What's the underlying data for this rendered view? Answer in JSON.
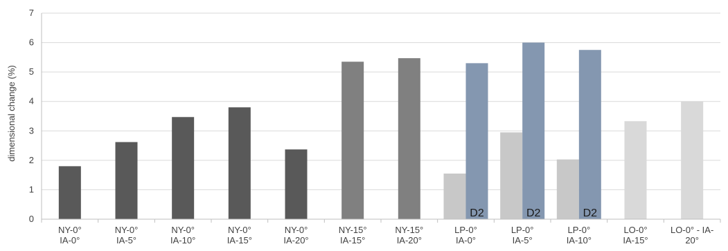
{
  "chart_data": {
    "type": "bar",
    "title": "",
    "xlabel": "",
    "ylabel": "dimensional change (%)",
    "ylim": [
      0,
      7
    ],
    "yticks": [
      0,
      1,
      2,
      3,
      4,
      5,
      6,
      7
    ],
    "grid": true,
    "legend": "none",
    "categories": [
      [
        "NY-0°",
        "IA-0°"
      ],
      [
        "NY-0°",
        "IA-5°"
      ],
      [
        "NY-0°",
        "IA-10°"
      ],
      [
        "NY-0°",
        "IA-15°"
      ],
      [
        "NY-0°",
        "IA-20°"
      ],
      [
        "NY-15°",
        "IA-15°"
      ],
      [
        "NY-15°",
        "IA-20°"
      ],
      [
        "LP-0°",
        "IA-0°"
      ],
      [
        "LP-0°",
        "IA-5°"
      ],
      [
        "LP-0°",
        "IA-10°"
      ],
      [
        "LO-0°",
        "IA-15°"
      ],
      [
        "LO-0° - IA-",
        "20°"
      ]
    ],
    "series": [
      {
        "color": "#595959",
        "values": [
          1.8,
          2.62,
          3.47,
          3.8,
          2.37,
          null,
          null,
          null,
          null,
          null,
          null,
          null
        ]
      },
      {
        "color": "#808080",
        "values": [
          null,
          null,
          null,
          null,
          null,
          5.35,
          5.47,
          null,
          null,
          null,
          null,
          null
        ]
      },
      {
        "color": "#c8c8c8",
        "values": [
          null,
          null,
          null,
          null,
          null,
          null,
          null,
          1.55,
          2.95,
          2.03,
          null,
          null
        ]
      },
      {
        "color": "#d9d9d9",
        "values": [
          null,
          null,
          null,
          null,
          null,
          null,
          null,
          null,
          null,
          null,
          3.33,
          4.0
        ]
      },
      {
        "color": "#8497b0",
        "values": [
          null,
          null,
          null,
          null,
          null,
          null,
          null,
          5.3,
          6.0,
          5.75,
          null,
          null
        ]
      }
    ],
    "annotations": [
      {
        "category_index": 7,
        "text": "D2"
      },
      {
        "category_index": 8,
        "text": "D2"
      },
      {
        "category_index": 9,
        "text": "D2"
      }
    ]
  }
}
